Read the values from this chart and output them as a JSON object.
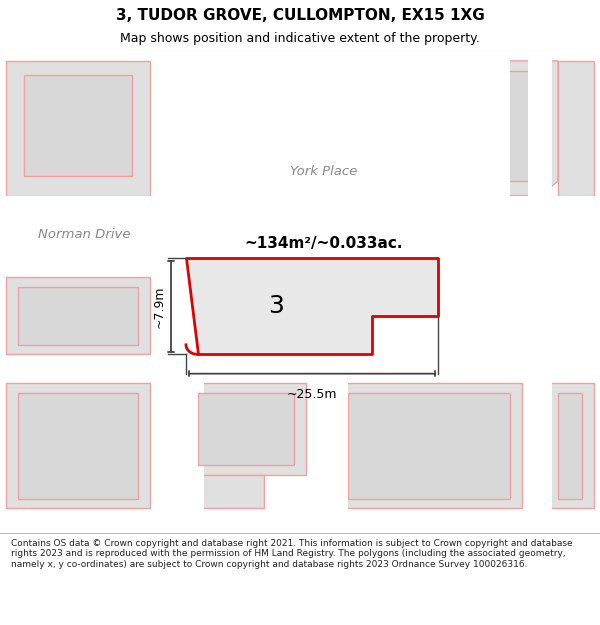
{
  "title": "3, TUDOR GROVE, CULLOMPTON, EX15 1XG",
  "subtitle": "Map shows position and indicative extent of the property.",
  "footer": "Contains OS data © Crown copyright and database right 2021. This information is subject to Crown copyright and database rights 2023 and is reproduced with the permission of HM Land Registry. The polygons (including the associated geometry, namely x, y co-ordinates) are subject to Crown copyright and database rights 2023 Ordnance Survey 100026316.",
  "area_label": "~134m²/~0.033ac.",
  "width_label": "~25.5m",
  "height_label": "~7.9m",
  "number_label": "3",
  "map_bg": "#f2f2f2",
  "road_color": "#ffffff",
  "block_fill": "#e0e0e0",
  "block_outline": "#f0a0a0",
  "property_fill": "#e8e8e8",
  "property_outline": "#dd0000",
  "dim_color": "#444444",
  "road_label_color": "#888888",
  "title_color": "#000000",
  "footer_color": "#222222",
  "title_fontsize": 11,
  "subtitle_fontsize": 9,
  "footer_fontsize": 6.5
}
